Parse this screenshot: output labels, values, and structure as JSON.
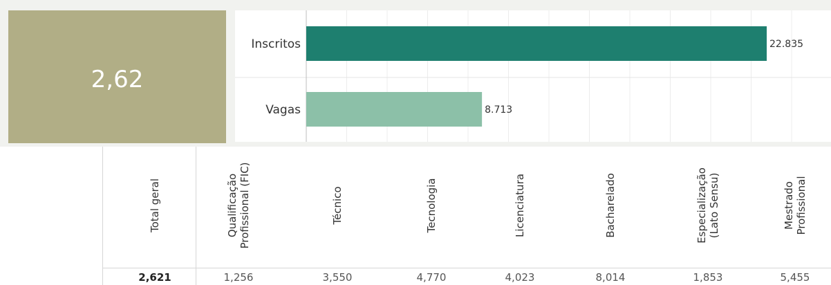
{
  "kpi": {
    "value": "2,62",
    "color": "#b1ae86"
  },
  "chart_data": {
    "type": "bar",
    "orientation": "horizontal",
    "categories": [
      "Inscritos",
      "Vagas"
    ],
    "values": [
      22835,
      8713
    ],
    "value_labels": [
      "22.835",
      "8.713"
    ],
    "colors": [
      "#1e7f6f",
      "#8cc0a8"
    ],
    "xlim": [
      0,
      24000
    ],
    "grid": true
  },
  "table": {
    "columns": [
      "Total geral",
      "Qualificação\nProfissional (FIC)",
      "Técnico",
      "Tecnologia",
      "Licenciatura",
      "Bacharelado",
      "Especialização\n(Lato Sensu)",
      "Mestrado\nProfissional"
    ],
    "values": [
      "2,621",
      "1,256",
      "3,550",
      "4,770",
      "4,023",
      "8,014",
      "1,853",
      "5,455"
    ]
  }
}
